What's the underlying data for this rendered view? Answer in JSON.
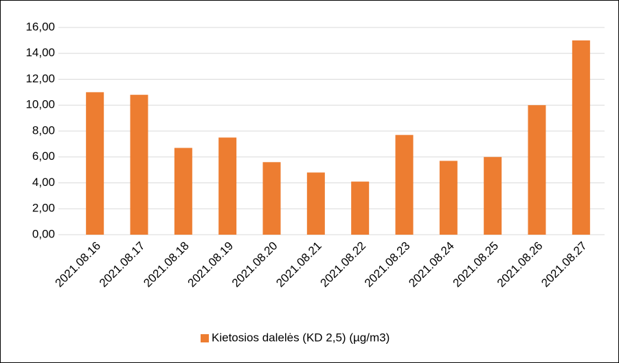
{
  "chart_data": {
    "type": "bar",
    "categories": [
      "2021.08.16",
      "2021.08.17",
      "2021.08.18",
      "2021.08.19",
      "2021.08.20",
      "2021.08.21",
      "2021.08.22",
      "2021.08.23",
      "2021.08.24",
      "2021.08.25",
      "2021.08.26",
      "2021.08.27"
    ],
    "series": [
      {
        "name": "Kietosios dalelės (KD 2,5) (µg/m3)",
        "color": "#ed7d31",
        "values": [
          11.0,
          10.8,
          6.7,
          7.5,
          5.6,
          4.8,
          4.1,
          7.7,
          5.7,
          6.0,
          10.0,
          15.0
        ]
      }
    ],
    "ylim": [
      0,
      16
    ],
    "yticks": [
      {
        "value": 0,
        "label": "0,00"
      },
      {
        "value": 2,
        "label": "2,00"
      },
      {
        "value": 4,
        "label": "4,00"
      },
      {
        "value": 6,
        "label": "6,00"
      },
      {
        "value": 8,
        "label": "8,00"
      },
      {
        "value": 10,
        "label": "10,00"
      },
      {
        "value": 12,
        "label": "12,00"
      },
      {
        "value": 14,
        "label": "14,00"
      },
      {
        "value": 16,
        "label": "16,00"
      }
    ],
    "grid": true,
    "legend": "bottom"
  }
}
